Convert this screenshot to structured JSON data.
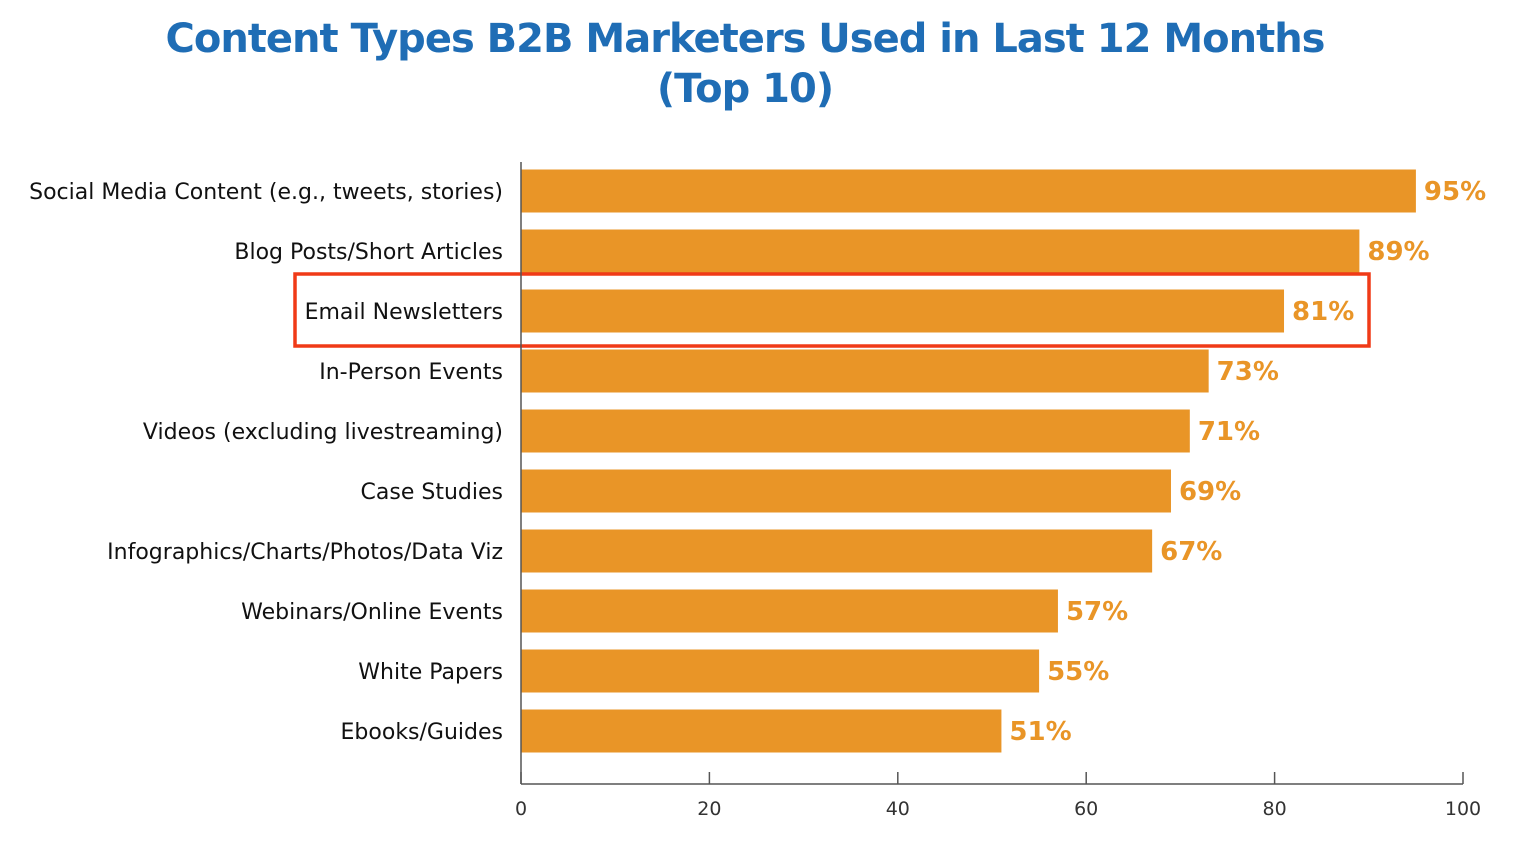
{
  "chart_data": {
    "type": "bar",
    "orientation": "horizontal",
    "title_lines": [
      "Content Types B2B Marketers Used in Last 12 Months",
      "(Top 10)"
    ],
    "categories": [
      "Social Media Content (e.g., tweets, stories)",
      "Blog Posts/Short Articles",
      "Email Newsletters",
      "In-Person Events",
      "Videos (excluding livestreaming)",
      "Case Studies",
      "Infographics/Charts/Photos/Data Viz",
      "Webinars/Online Events",
      "White Papers",
      "Ebooks/Guides"
    ],
    "values": [
      95,
      89,
      81,
      73,
      71,
      69,
      67,
      57,
      55,
      51
    ],
    "data_labels": [
      "95%",
      "89%",
      "81%",
      "73%",
      "71%",
      "69%",
      "67%",
      "57%",
      "55%",
      "51%"
    ],
    "xlim": [
      0,
      100
    ],
    "xticks": [
      "0",
      "20",
      "40",
      "60",
      "80",
      "100"
    ],
    "xlabel": "",
    "ylabel": "",
    "grid": false,
    "highlighted_category": "Email Newsletters",
    "colors": {
      "bar": "#e99527",
      "title": "#1f6db5",
      "highlight_box": "#f03a17"
    }
  }
}
